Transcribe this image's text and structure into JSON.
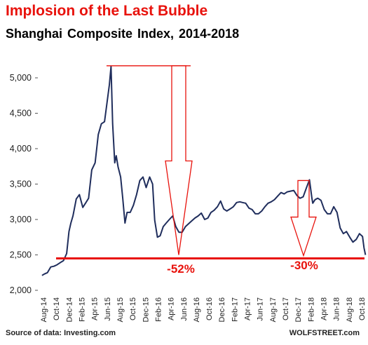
{
  "title": "Implosion of the Last Bubble",
  "subtitle": "Shanghai  Composite  Index, 2014-2018",
  "source": "Source of data: Investing.com",
  "brand": "WOLFSTREET.com",
  "colors": {
    "title": "#e8120c",
    "line": "#1f2d5c",
    "annotation": "#e8120c"
  },
  "chart_data": {
    "type": "line",
    "title": "Shanghai  Composite  Index, 2014-2018",
    "xlabel": "",
    "ylabel": "",
    "ylim": [
      2000,
      5400
    ],
    "yticks": [
      2000,
      2500,
      3000,
      3500,
      4000,
      4500,
      5000
    ],
    "ytick_labels": [
      "2,000",
      "2,500",
      "3,000",
      "3,500",
      "4,000",
      "4,500",
      "5,000"
    ],
    "xtick_labels": [
      "Aug-14",
      "Oct-14",
      "Dec-14",
      "Feb-15",
      "Apr-15",
      "Jun-15",
      "Aug-15",
      "Oct-15",
      "Dec-15",
      "Feb-16",
      "Apr-16",
      "Jun-16",
      "Aug-16",
      "Oct-16",
      "Dec-16",
      "Feb-17",
      "Apr-17",
      "Jun-17",
      "Aug-17",
      "Oct-17",
      "Dec-17",
      "Feb-18",
      "Apr-18",
      "Jun-18",
      "Aug-18",
      "Oct-18"
    ],
    "grid": false,
    "series": [
      {
        "x": [
          "2014-07-25",
          "2014-08-05",
          "2014-08-20",
          "2014-09-05",
          "2014-09-20",
          "2014-10-05",
          "2014-10-20",
          "2014-11-05",
          "2014-11-20",
          "2014-12-01",
          "2014-12-10",
          "2014-12-20",
          "2015-01-05",
          "2015-01-20",
          "2015-02-05",
          "2015-02-20",
          "2015-03-05",
          "2015-03-20",
          "2015-04-05",
          "2015-04-20",
          "2015-05-05",
          "2015-05-20",
          "2015-06-01",
          "2015-06-12",
          "2015-06-20",
          "2015-06-28",
          "2015-07-08",
          "2015-07-15",
          "2015-07-24",
          "2015-08-05",
          "2015-08-15",
          "2015-08-26",
          "2015-09-05",
          "2015-09-20",
          "2015-10-05",
          "2015-10-20",
          "2015-11-05",
          "2015-11-20",
          "2015-12-05",
          "2015-12-22",
          "2016-01-05",
          "2016-01-15",
          "2016-01-28",
          "2016-02-10",
          "2016-02-25",
          "2016-03-10",
          "2016-03-25",
          "2016-04-10",
          "2016-04-25",
          "2016-05-10",
          "2016-05-25",
          "2016-06-10",
          "2016-06-25",
          "2016-07-10",
          "2016-07-25",
          "2016-08-10",
          "2016-08-25",
          "2016-09-10",
          "2016-09-25",
          "2016-10-10",
          "2016-10-25",
          "2016-11-10",
          "2016-11-25",
          "2016-12-10",
          "2016-12-25",
          "2017-01-10",
          "2017-01-25",
          "2017-02-10",
          "2017-02-25",
          "2017-03-10",
          "2017-03-25",
          "2017-04-10",
          "2017-04-25",
          "2017-05-10",
          "2017-05-25",
          "2017-06-10",
          "2017-06-25",
          "2017-07-10",
          "2017-07-25",
          "2017-08-10",
          "2017-08-25",
          "2017-09-10",
          "2017-09-25",
          "2017-10-10",
          "2017-10-25",
          "2017-11-10",
          "2017-11-25",
          "2017-12-10",
          "2017-12-25",
          "2018-01-10",
          "2018-01-24",
          "2018-02-05",
          "2018-02-09",
          "2018-02-20",
          "2018-03-05",
          "2018-03-20",
          "2018-04-05",
          "2018-04-20",
          "2018-05-05",
          "2018-05-20",
          "2018-06-05",
          "2018-06-20",
          "2018-07-05",
          "2018-07-20",
          "2018-08-05",
          "2018-08-20",
          "2018-09-05",
          "2018-09-20",
          "2018-10-05",
          "2018-10-12",
          "2018-10-19"
        ],
        "values": [
          2210,
          2230,
          2250,
          2330,
          2340,
          2360,
          2390,
          2420,
          2520,
          2830,
          2950,
          3050,
          3290,
          3350,
          3170,
          3240,
          3300,
          3700,
          3800,
          4200,
          4350,
          4380,
          4650,
          4900,
          5160,
          4350,
          3800,
          3900,
          3740,
          3600,
          3300,
          2950,
          3100,
          3100,
          3200,
          3350,
          3550,
          3600,
          3450,
          3600,
          3500,
          2990,
          2750,
          2770,
          2900,
          2950,
          3000,
          3050,
          2900,
          2820,
          2820,
          2900,
          2940,
          2980,
          3020,
          3050,
          3090,
          3000,
          3020,
          3100,
          3130,
          3180,
          3260,
          3150,
          3120,
          3150,
          3180,
          3240,
          3250,
          3240,
          3230,
          3160,
          3140,
          3080,
          3080,
          3120,
          3180,
          3230,
          3250,
          3280,
          3330,
          3380,
          3360,
          3390,
          3400,
          3410,
          3340,
          3300,
          3320,
          3450,
          3560,
          3300,
          3230,
          3280,
          3300,
          3270,
          3140,
          3080,
          3080,
          3180,
          3100,
          2880,
          2800,
          2830,
          2750,
          2680,
          2720,
          2800,
          2760,
          2600,
          2500
        ]
      }
    ],
    "annotations": [
      {
        "text": "-52%",
        "from": [
          "2015-06-12",
          5170
        ],
        "to": [
          "2016-01-28",
          2520
        ]
      },
      {
        "text": "-30%",
        "from": [
          "2018-01-24",
          3560
        ],
        "to": [
          "2018-02-09",
          2450
        ]
      }
    ],
    "baseline": 2450
  }
}
